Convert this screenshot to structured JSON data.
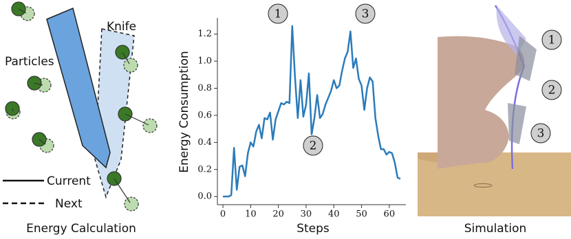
{
  "diagram": {
    "knife": "Knife",
    "particles": "Particles",
    "current": "Current",
    "next": "Next",
    "caption": "Energy Calculation"
  },
  "chart_data": {
    "type": "line",
    "xlabel": "Steps",
    "ylabel": "Energy Consumption",
    "color": "#2b7bba",
    "x": [
      0,
      1,
      2,
      3,
      4,
      5,
      6,
      7,
      8,
      9,
      10,
      11,
      12,
      13,
      14,
      15,
      16,
      17,
      18,
      19,
      20,
      21,
      22,
      23,
      24,
      25,
      26,
      27,
      28,
      29,
      30,
      31,
      32,
      33,
      34,
      35,
      36,
      37,
      38,
      39,
      40,
      41,
      42,
      43,
      44,
      45,
      46,
      47,
      48,
      49,
      50,
      51,
      52,
      53,
      54,
      55,
      56,
      57,
      58,
      59,
      60,
      61,
      62,
      63,
      64
    ],
    "values": [
      0.0,
      0.0,
      0.0,
      0.01,
      0.36,
      0.05,
      0.22,
      0.23,
      0.15,
      0.32,
      0.4,
      0.37,
      0.48,
      0.53,
      0.43,
      0.58,
      0.57,
      0.62,
      0.42,
      0.57,
      0.63,
      0.69,
      0.68,
      0.7,
      0.69,
      1.26,
      0.88,
      0.58,
      0.86,
      0.59,
      0.68,
      0.91,
      0.46,
      0.58,
      0.75,
      0.58,
      0.61,
      0.68,
      0.73,
      0.78,
      0.86,
      0.8,
      0.82,
      0.93,
      1.02,
      1.07,
      1.22,
      0.95,
      1.02,
      0.87,
      0.82,
      0.64,
      0.8,
      0.88,
      0.85,
      0.58,
      0.45,
      0.35,
      0.35,
      0.31,
      0.33,
      0.32,
      0.25,
      0.14,
      0.13
    ],
    "xlim": [
      -2,
      66
    ],
    "xticks": [
      0,
      10,
      20,
      30,
      40,
      50,
      60
    ],
    "ylim": [
      -0.06,
      1.32
    ],
    "yticks": [
      {
        "value": 0,
        "label": "0.0"
      },
      0.2,
      0.4,
      0.6,
      0.8,
      {
        "value": 1,
        "label": "1.0"
      },
      1.2
    ],
    "grid": false,
    "annotations": [
      "1",
      "2",
      "3"
    ]
  },
  "simulation": {
    "labels": [
      "1",
      "2",
      "3"
    ],
    "caption": "Simulation"
  }
}
